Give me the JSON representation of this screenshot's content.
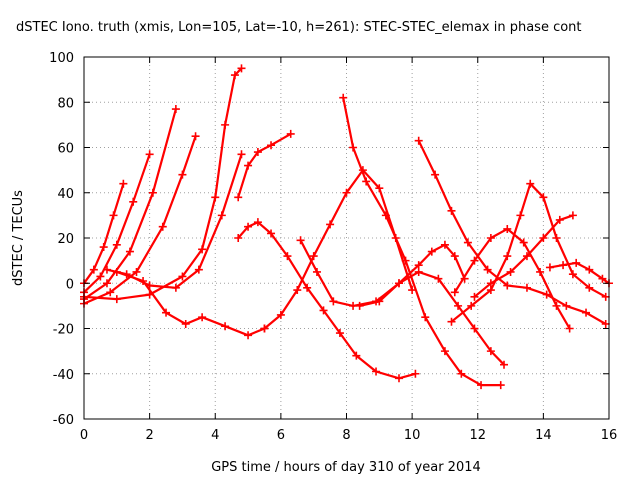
{
  "chart_data": {
    "type": "scatter",
    "title": "dSTEC Iono. truth (xmis, Lon=105, Lat=-10, h=261): STEC-STEC_elemax in phase cont",
    "xlabel": "GPS time / hours of day 310 of year 2014",
    "ylabel": "dSTEC  / TECUs",
    "xlim": [
      0,
      16
    ],
    "ylim": [
      -60,
      100
    ],
    "xticks": [
      0,
      2,
      4,
      6,
      8,
      10,
      12,
      14,
      16
    ],
    "yticks": [
      -60,
      -40,
      -20,
      0,
      20,
      40,
      60,
      80,
      100
    ],
    "xtick_labels": [
      "0",
      "2",
      "4",
      "6",
      "8",
      "10",
      "12",
      "14",
      "16"
    ],
    "ytick_labels": [
      "-60",
      "-40",
      "-20",
      "0",
      "20",
      "40",
      "60",
      "80",
      "100"
    ],
    "grid": true,
    "marker": "plus",
    "color": "#ff0000",
    "series": [
      {
        "x": [
          0.0,
          0.3,
          0.6,
          0.9,
          1.2
        ],
        "y": [
          0,
          6,
          16,
          30,
          44
        ]
      },
      {
        "x": [
          0.0,
          0.5,
          1.0,
          1.5,
          2.0
        ],
        "y": [
          -4,
          3,
          17,
          36,
          57
        ]
      },
      {
        "x": [
          0.0,
          0.7,
          1.4,
          2.1,
          2.8
        ],
        "y": [
          -7,
          0,
          14,
          40,
          77
        ]
      },
      {
        "x": [
          0.0,
          0.8,
          1.6,
          2.4,
          3.0,
          3.4
        ],
        "y": [
          -9,
          -4,
          5,
          25,
          48,
          65
        ]
      },
      {
        "x": [
          0.0,
          1.0,
          2.0,
          3.0,
          3.6,
          4.0,
          4.3,
          4.6,
          4.8
        ],
        "y": [
          -6,
          -7,
          -5,
          3,
          15,
          38,
          70,
          92,
          95
        ]
      },
      {
        "x": [
          0.7,
          1.3,
          2.0,
          2.8,
          3.5,
          4.2,
          4.8
        ],
        "y": [
          6,
          4,
          -1,
          -2,
          6,
          30,
          57
        ]
      },
      {
        "x": [
          1.0,
          1.8,
          2.5,
          3.1,
          3.6,
          4.3,
          5.0,
          5.5
        ],
        "y": [
          5,
          1,
          -13,
          -18,
          -15,
          -19,
          -23,
          -20
        ]
      },
      {
        "x": [
          4.7,
          5.0,
          5.3,
          5.7,
          6.2,
          6.8,
          7.3,
          7.8,
          8.3,
          8.9,
          9.6,
          10.1
        ],
        "y": [
          20,
          25,
          27,
          22,
          12,
          -2,
          -12,
          -22,
          -32,
          -39,
          -42,
          -40
        ]
      },
      {
        "x": [
          4.7,
          5.0,
          5.3,
          5.7,
          6.3
        ],
        "y": [
          38,
          52,
          58,
          61,
          66
        ]
      },
      {
        "x": [
          5.5,
          6.0,
          6.5,
          7.0,
          7.5,
          8.0,
          8.5,
          9.0,
          9.5,
          10.0
        ],
        "y": [
          -20,
          -14,
          -3,
          12,
          26,
          40,
          50,
          42,
          20,
          -3
        ]
      },
      {
        "x": [
          6.6,
          7.1,
          7.6,
          8.2,
          8.9,
          9.6,
          10.2,
          10.8,
          11.4,
          11.9,
          12.4,
          12.8
        ],
        "y": [
          19,
          5,
          -8,
          -10,
          -8,
          0,
          5,
          2,
          -10,
          -20,
          -30,
          -36
        ]
      },
      {
        "x": [
          7.9,
          8.2,
          8.6,
          9.2,
          9.8,
          10.4,
          11.0,
          11.5,
          12.1,
          12.7
        ],
        "y": [
          82,
          60,
          45,
          30,
          10,
          -15,
          -30,
          -40,
          -45,
          -45
        ]
      },
      {
        "x": [
          10.2,
          10.7,
          11.2,
          11.7,
          12.3,
          12.9,
          13.5,
          14.1,
          14.7,
          15.3,
          15.9
        ],
        "y": [
          63,
          48,
          32,
          18,
          6,
          -1,
          -2,
          -5,
          -10,
          -13,
          -18
        ]
      },
      {
        "x": [
          8.4,
          9.0,
          9.6,
          10.2,
          10.6,
          11.0,
          11.3,
          11.6
        ],
        "y": [
          -10,
          -8,
          0,
          8,
          14,
          17,
          12,
          2
        ]
      },
      {
        "x": [
          11.3,
          11.9,
          12.4,
          12.9,
          13.4,
          13.9,
          14.4,
          14.8
        ],
        "y": [
          -4,
          10,
          20,
          24,
          18,
          5,
          -10,
          -20
        ]
      },
      {
        "x": [
          11.2,
          11.8,
          12.4,
          12.9,
          13.3,
          13.6,
          14.0,
          14.4,
          14.9,
          15.4,
          15.9
        ],
        "y": [
          -17,
          -10,
          -3,
          12,
          30,
          44,
          38,
          20,
          4,
          -2,
          -6
        ]
      },
      {
        "x": [
          11.9,
          12.4,
          13.0,
          13.5,
          14.0,
          14.5,
          14.9
        ],
        "y": [
          -6,
          0,
          5,
          12,
          20,
          28,
          30
        ]
      },
      {
        "x": [
          14.2,
          14.6,
          15.0,
          15.4,
          15.8,
          16.0
        ],
        "y": [
          7,
          8,
          9,
          6,
          2,
          0
        ]
      }
    ]
  }
}
